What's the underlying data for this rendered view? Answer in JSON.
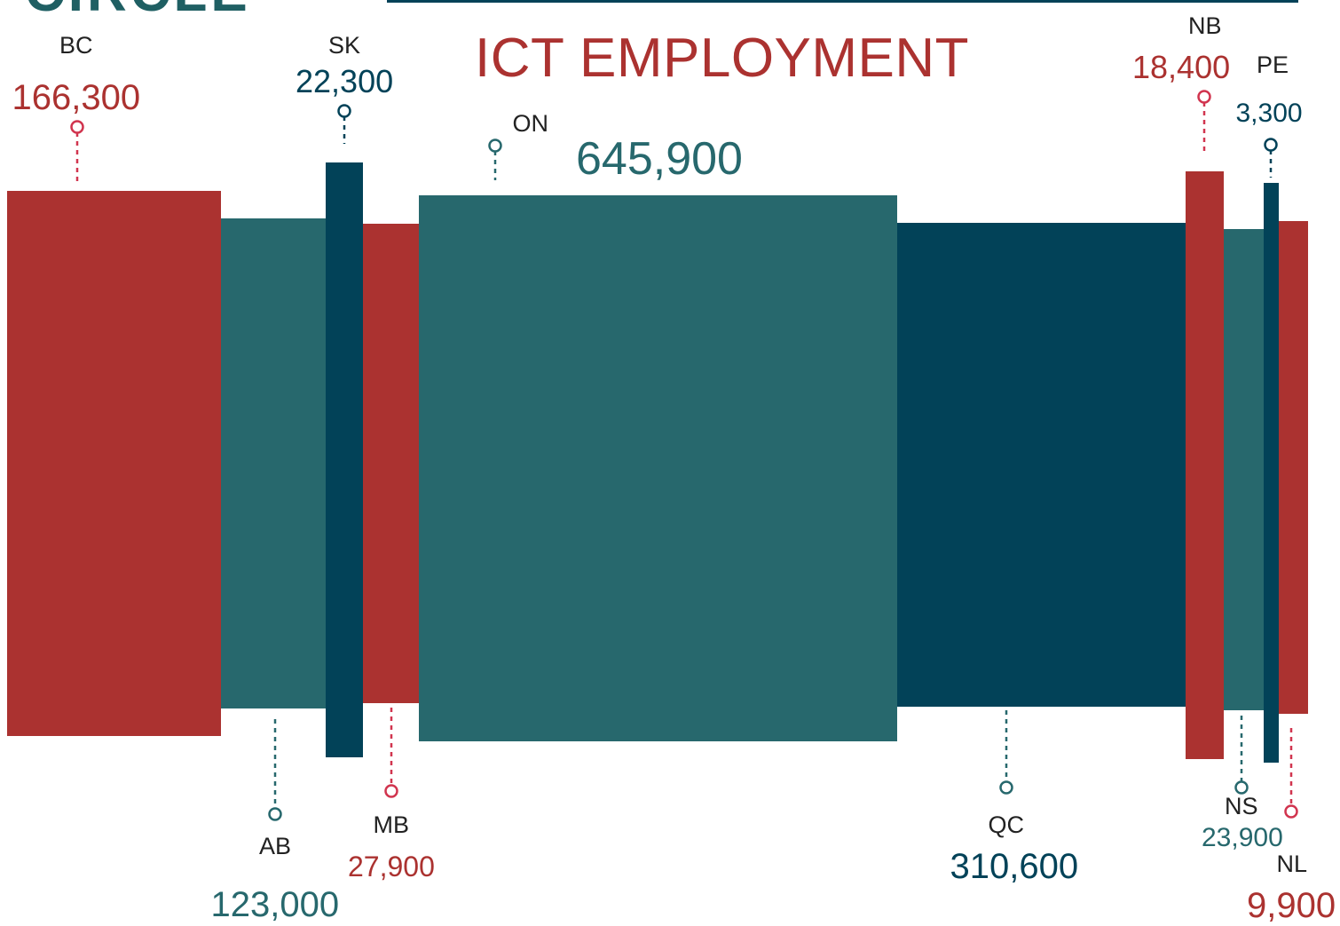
{
  "chart_data": {
    "type": "bar",
    "title": "ICT EMPLOYMENT",
    "categories": [
      "BC",
      "AB",
      "SK",
      "MB",
      "ON",
      "QC",
      "NB",
      "NS",
      "PE",
      "NL"
    ],
    "values": [
      166300,
      123000,
      22300,
      27900,
      645900,
      310600,
      18400,
      23900,
      3300,
      9900
    ],
    "value_labels": [
      "166,300",
      "123,000",
      "22,300",
      "27,900",
      "645,900",
      "310,600",
      "18,400",
      "23,900",
      "3,300",
      "9,900"
    ],
    "label_position": [
      "top",
      "bottom",
      "top",
      "bottom",
      "top",
      "bottom",
      "top",
      "bottom",
      "top",
      "bottom"
    ],
    "legend": "none",
    "grid": false
  },
  "colors": {
    "red": "#ab3230",
    "teal": "#27686d",
    "navy": "#024258",
    "bar_colors": [
      "#ab3230",
      "#27686d",
      "#024258",
      "#ab3230",
      "#27686d",
      "#024258",
      "#ab3230",
      "#27686d",
      "#024258",
      "#ab3230"
    ],
    "pin_colors": [
      "#d1354f",
      "#27686d",
      "#024258",
      "#d1354f",
      "#27686d",
      "#27686d",
      "#d1354f",
      "#27686d",
      "#024258",
      "#d1354f"
    ],
    "value_colors": [
      "#ab3230",
      "#27686d",
      "#024258",
      "#ab3230",
      "#27686d",
      "#024258",
      "#ab3230",
      "#27686d",
      "#024258",
      "#ab3230"
    ]
  },
  "logo": {
    "text": "CIRCLE"
  }
}
